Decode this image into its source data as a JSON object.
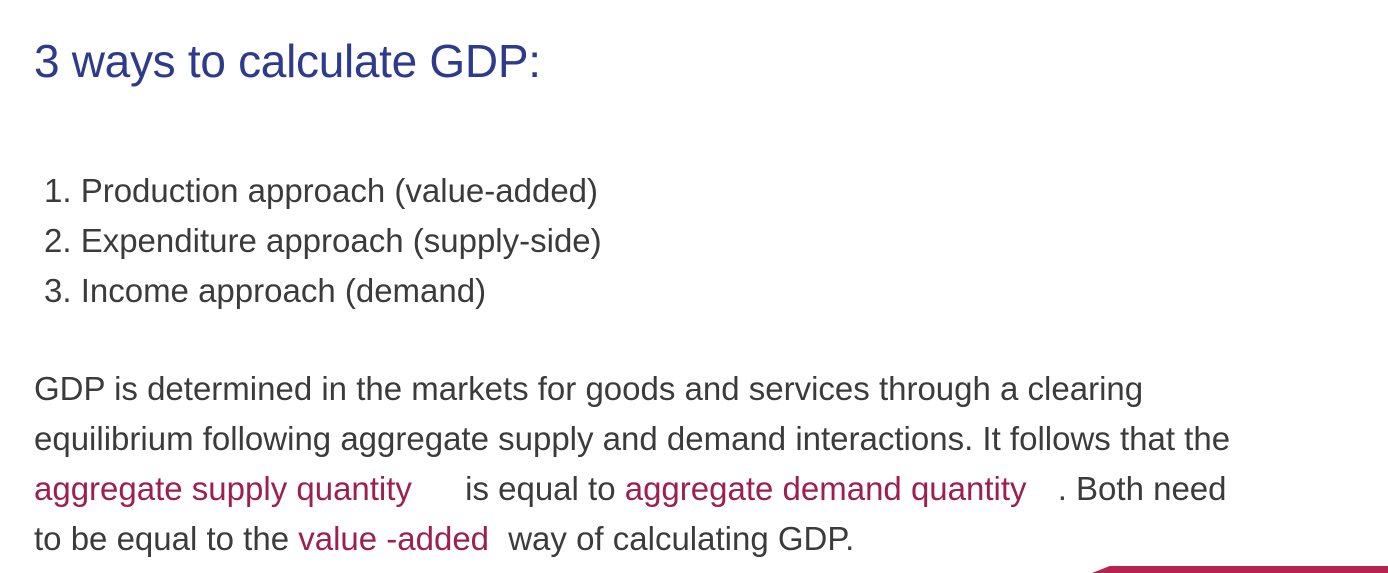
{
  "title": "3 ways to calculate GDP:",
  "approaches": [
    "1. Production approach (value-added)",
    "2. Expenditure approach (supply-side)",
    "3. Income approach (demand)"
  ],
  "paragraph": {
    "line1": "GDP is determined in the markets for goods and services through a clearing",
    "line2": "equilibrium following aggregate supply and demand interactions. It follows that the",
    "highlight_supply": "aggregate supply quantity",
    "text_equal": "is equal to",
    "highlight_demand": "aggregate demand quantity",
    "text_both": ". Both need",
    "text_to_be": "to be equal to the",
    "highlight_value_added": "value -added",
    "text_end": "way of calculating GDP."
  },
  "colors": {
    "title": "#2e3a8c",
    "body": "#3b3b3b",
    "highlight": "#9e1f4e",
    "accent": "#b62350"
  }
}
